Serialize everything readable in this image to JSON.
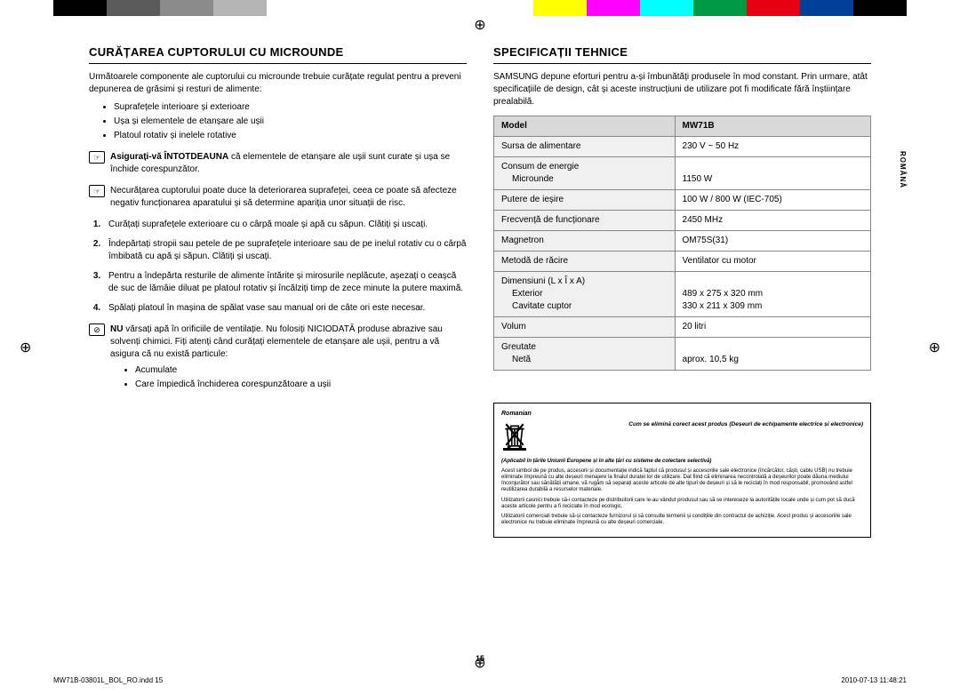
{
  "colorBar": [
    "#ffffff",
    "#000000",
    "#5a5a5a",
    "#8a8a8a",
    "#b5b5b5",
    "#ffffff",
    "#ffffff",
    "#ffffff",
    "#ffffff",
    "#ffffff",
    "#ffff00",
    "#ff00ff",
    "#00ffff",
    "#009944",
    "#e60012",
    "#004098",
    "#000000",
    "#ffffff"
  ],
  "left": {
    "heading": "CURĂȚAREA CUPTORULUI CU MICROUNDE",
    "intro": "Următoarele componente ale cuptorului cu microunde trebuie curățate regulat pentru a preveni depunerea de grăsimi și resturi de alimente:",
    "bullets": [
      "Suprafețele interioare și exterioare",
      "Ușa și elementele de etanșare ale ușii",
      "Platoul rotativ și inelele rotative"
    ],
    "note1b": "Asigurați-vă ÎNTOTDEAUNA",
    "note1": " că elementele de etanșare ale ușii sunt curate și ușa se închide corespunzător.",
    "note2": "Necurățarea cuptorului poate duce la deteriorarea suprafeței, ceea ce poate să afecteze negativ funcționarea aparatului și să determine apariția unor situații de risc.",
    "steps": [
      "Curățați suprafețele exterioare cu o cârpă moale și apă cu săpun. Clătiți și uscați.",
      "Îndepărtați stropii sau petele de pe suprafețele interioare sau de pe inelul rotativ cu o cârpă îmbibată cu apă și săpun. Clătiți și uscați.",
      "Pentru a îndepărta resturile de alimente întărite și mirosurile neplăcute, așezați o ceașcă de suc de lămâie diluat pe platoul rotativ și încălziți timp de zece minute la putere maximă.",
      "Spălați platoul în mașina de spălat vase sau manual ori de câte ori este necesar."
    ],
    "note3b": "NU",
    "note3": " vărsați apă în orificiile de ventilație. Nu folosiți NICIODATĂ produse abrazive sau solvenți chimici. Fiți atenți când curățați elementele de etanșare ale ușii, pentru a vă asigura că nu există particule:",
    "subBullets": [
      "Acumulate",
      "Care împiedică închiderea corespunzătoare a ușii"
    ]
  },
  "right": {
    "heading": "SPECIFICAȚII TEHNICE",
    "intro": "SAMSUNG depune eforturi pentru a-și îmbunătăți produsele în mod constant. Prin urmare, atât specificațiile de design, cât și aceste instrucțiuni de utilizare pot fi modificate fără înștiințare prealabilă.",
    "table": {
      "model_l": "Model",
      "model_v": "MW71B",
      "r1l": "Sursa de alimentare",
      "r1v": "230 V ~ 50 Hz",
      "r2l": "Consum de energie",
      "r2s": "Microunde",
      "r2v": "1150 W",
      "r3l": "Putere de ieșire",
      "r3v": "100 W / 800 W (IEC-705)",
      "r4l": "Frecvență de funcționare",
      "r4v": "2450 MHz",
      "r5l": "Magnetron",
      "r5v": "OM75S(31)",
      "r6l": "Metodă de răcire",
      "r6v": "Ventilator cu motor",
      "r7l": "Dimensiuni (L x Î x A)",
      "r7s1": "Exterior",
      "r7v1": "489 x 275 x 320 mm",
      "r7s2": "Cavitate cuptor",
      "r7v2": "330 x 211 x 309 mm",
      "r8l": "Volum",
      "r8v": "20 litri",
      "r9l": "Greutate",
      "r9s": "Netă",
      "r9v": "aprox. 10,5 kg"
    }
  },
  "disposal": {
    "lang": "Romanian",
    "head": "Cum se elimină corect acest produs (Deșeuri de echipamente electrice și electronice)",
    "p1": "(Aplicabil în țările Uniunii Europene și în alte țări cu sisteme de colectare selectivă)",
    "p2": "Acest simbol de pe produs, accesorii și documentație indică faptul că produsul și accesoriile sale electronice (încărcător, căști, cablu USB) nu trebuie eliminate împreună cu alte deșeuri menajere la finalul duratei lor de utilizare. Dat fiind că eliminarea necontrolată a deșeurilor poate dăuna mediului înconjurător sau sănătății umane, vă rugăm să separați aceste articole de alte tipuri de deșeuri și să le reciclați în mod responsabil, promovând astfel reutilizarea durabilă a resurselor materiale.",
    "p3": "Utilizatorii casnici trebuie să-i contacteze pe distribuitorii care le-au vândut produsul sau să se intereseze la autoritățile locale unde și cum pot să ducă aceste articole pentru a fi reciclate în mod ecologic.",
    "p4": "Utilizatorii comerciali trebuie să-și contacteze furnizorul și să consulte termenii și condițiile din contractul de achiziție. Acest produs și accesoriile sale electronice nu trebuie eliminate împreună cu alte deșeuri comerciale."
  },
  "sideLabel": "ROMÂNĂ",
  "pageNum": "15",
  "footerLeft": "MW71B-03801L_BOL_RO.indd   15",
  "footerRight": "2010-07-13   11:48:21"
}
